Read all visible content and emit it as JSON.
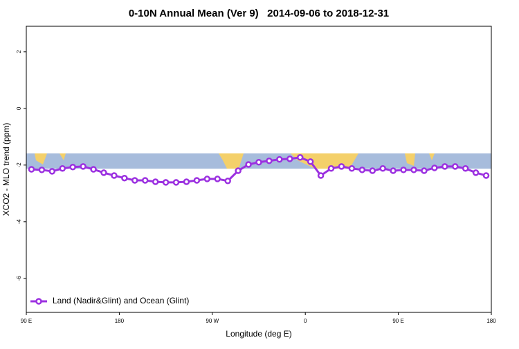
{
  "chart_data": {
    "type": "line",
    "title": "0-10N Annual Mean (Ver 9)   2014-09-06 to 2018-12-31",
    "x_label": "Longitude (deg E)",
    "y_label": "XCO2 - MLO trend (ppm)",
    "x": [
      95,
      105,
      115,
      125,
      135,
      145,
      155,
      165,
      175,
      185,
      195,
      205,
      215,
      225,
      235,
      245,
      255,
      265,
      275,
      285,
      295,
      305,
      315,
      325,
      335,
      345,
      355,
      365,
      375,
      385,
      395,
      405,
      415,
      425,
      435,
      445,
      455,
      465,
      475,
      485,
      495,
      505,
      515,
      525,
      535
    ],
    "series": [
      {
        "name": "Land (Nadir&Glint) and Ocean (Glint)",
        "color": "#9b30e0",
        "values": [
          -2.15,
          -2.17,
          -2.22,
          -2.12,
          -2.07,
          -2.05,
          -2.15,
          -2.27,
          -2.37,
          -2.46,
          -2.54,
          -2.54,
          -2.59,
          -2.61,
          -2.61,
          -2.59,
          -2.54,
          -2.49,
          -2.49,
          -2.56,
          -2.2,
          -1.98,
          -1.9,
          -1.85,
          -1.8,
          -1.78,
          -1.73,
          -1.88,
          -2.37,
          -2.12,
          -2.05,
          -2.12,
          -2.17,
          -2.2,
          -2.12,
          -2.2,
          -2.17,
          -2.17,
          -2.2,
          -2.1,
          -2.05,
          -2.05,
          -2.12,
          -2.27,
          -2.37
        ]
      }
    ],
    "xlim": [
      90,
      540
    ],
    "xticks": [
      {
        "value": 90,
        "label": "90 E"
      },
      180,
      {
        "value": 270,
        "label": "90 W"
      },
      {
        "value": 360,
        "label": "0"
      },
      {
        "value": 450,
        "label": "90 E"
      },
      {
        "value": 540,
        "label": "180"
      }
    ],
    "ylim": [
      -7.2,
      2.9
    ],
    "yticks": [
      2,
      0,
      -2,
      -4,
      -6
    ],
    "legend": "bottom-left"
  }
}
